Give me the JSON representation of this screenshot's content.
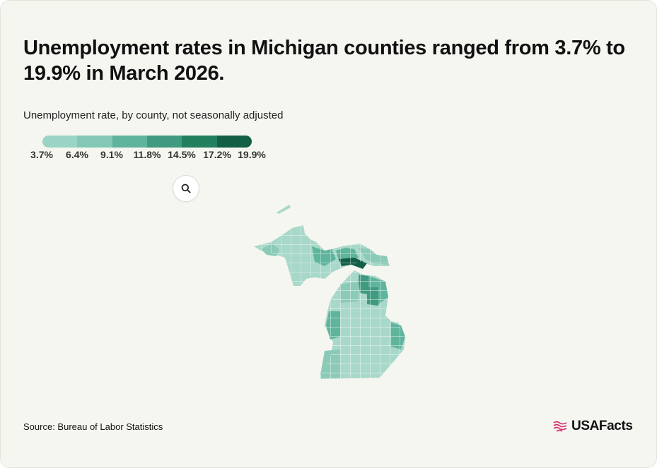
{
  "title": "Unemployment rates in Michigan counties ranged from 3.7% to 19.9% in March 2026.",
  "subtitle": "Unemployment rate, by county, not seasonally adjusted",
  "legend": {
    "labels": [
      "3.7%",
      "6.4%",
      "9.1%",
      "11.8%",
      "14.5%",
      "17.2%",
      "19.9%"
    ],
    "colors": [
      "#9ad4c4",
      "#83c8b4",
      "#5fb49c",
      "#3f9a7f",
      "#22805f",
      "#125f45"
    ]
  },
  "map": {
    "state": "Michigan",
    "colors": {
      "lowest": "#a8d8ca",
      "low": "#8ccab8",
      "mid": "#5fb49c",
      "high": "#3f9a7f",
      "highest": "#125f45"
    }
  },
  "zoom_button": {
    "icon": "search-icon"
  },
  "source": "Source: Bureau of Labor Statistics",
  "brand": {
    "name": "USAFacts",
    "icon": "usafacts-flag-icon",
    "color": "#d6306e"
  }
}
